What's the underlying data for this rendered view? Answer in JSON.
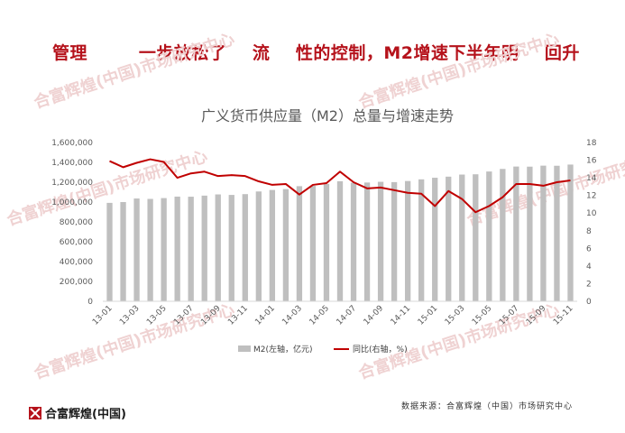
{
  "slide": {
    "title": "管理        一步放松了    流    性的控制，M2增速下半年明    回升"
  },
  "watermark": {
    "text": "合富辉煌(中国)市场研究中心",
    "color": "#efd2d2"
  },
  "footer": {
    "logo_text": "合富辉煌(中国)",
    "source": "数据来源：合富辉煌（中国）市场研究中心"
  },
  "colors": {
    "title": "#b5121b",
    "bar": "#bfbfbf",
    "line": "#c00000",
    "axis_text": "#595959"
  },
  "chart_data": {
    "type": "bar",
    "title": "广义货币供应量（M2）总量与增速走势",
    "xlabel": "",
    "ylabel": "",
    "x_tick_labels": [
      "13-01",
      "13-03",
      "13-05",
      "13-07",
      "13-09",
      "13-11",
      "14-01",
      "14-03",
      "14-05",
      "14-07",
      "14-09",
      "14-11",
      "15-01",
      "15-03",
      "15-05",
      "15-07",
      "15-09",
      "15-11"
    ],
    "categories": [
      "13-01",
      "13-02",
      "13-03",
      "13-04",
      "13-05",
      "13-06",
      "13-07",
      "13-08",
      "13-09",
      "13-10",
      "13-11",
      "13-12",
      "14-01",
      "14-02",
      "14-03",
      "14-04",
      "14-05",
      "14-06",
      "14-07",
      "14-08",
      "14-09",
      "14-10",
      "14-11",
      "14-12",
      "15-01",
      "15-02",
      "15-03",
      "15-04",
      "15-05",
      "15-06",
      "15-07",
      "15-08",
      "15-09",
      "15-10",
      "15-11"
    ],
    "y_left": {
      "ticks": [
        "0",
        "200,000",
        "400,000",
        "600,000",
        "800,000",
        "1,000,000",
        "1,200,000",
        "1,400,000",
        "1,600,000"
      ],
      "lim": [
        0,
        1600000
      ]
    },
    "y_right": {
      "ticks": [
        "0",
        "2",
        "4",
        "6",
        "8",
        "10",
        "12",
        "14",
        "16",
        "18"
      ],
      "lim": [
        0,
        18
      ]
    },
    "series": [
      {
        "name": "M2(左轴，亿元)",
        "type": "bar",
        "axis": "left",
        "values": [
          992000,
          1000000,
          1036000,
          1032000,
          1040000,
          1055000,
          1054000,
          1065000,
          1077000,
          1072000,
          1080000,
          1107000,
          1122000,
          1131000,
          1160000,
          1163000,
          1183000,
          1210000,
          1195000,
          1197000,
          1204000,
          1201000,
          1212000,
          1229000,
          1245000,
          1256000,
          1277000,
          1280000,
          1308000,
          1334000,
          1358000,
          1357000,
          1367000,
          1366000,
          1378000
        ]
      },
      {
        "name": "同比(右轴，%)",
        "type": "line",
        "axis": "right",
        "values": [
          15.9,
          15.2,
          15.7,
          16.1,
          15.8,
          14.0,
          14.5,
          14.7,
          14.2,
          14.3,
          14.2,
          13.6,
          13.2,
          13.3,
          12.1,
          13.2,
          13.4,
          14.7,
          13.5,
          12.8,
          12.9,
          12.6,
          12.3,
          12.2,
          10.8,
          12.5,
          11.6,
          10.1,
          10.8,
          11.8,
          13.3,
          13.3,
          13.1,
          13.5,
          13.7
        ]
      }
    ],
    "legend": "bottom",
    "grid": false
  }
}
